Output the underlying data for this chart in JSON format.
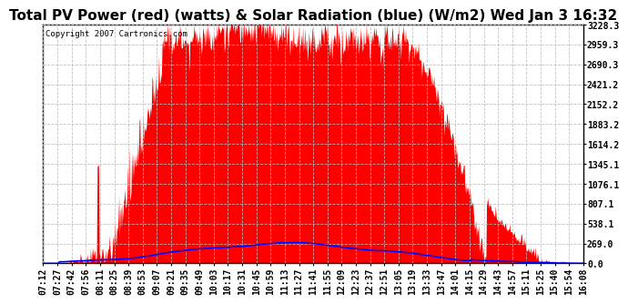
{
  "title": "Total PV Power (red) (watts) & Solar Radiation (blue) (W/m2) Wed Jan 3 16:32",
  "copyright": "Copyright 2007 Cartronics.com",
  "y_ticks": [
    0.0,
    269.0,
    538.1,
    807.1,
    1076.1,
    1345.1,
    1614.2,
    1883.2,
    2152.2,
    2421.2,
    2690.3,
    2959.3,
    3228.3
  ],
  "y_max": 3228.3,
  "x_labels": [
    "07:12",
    "07:27",
    "07:42",
    "07:56",
    "08:11",
    "08:25",
    "08:39",
    "08:53",
    "09:07",
    "09:21",
    "09:35",
    "09:49",
    "10:03",
    "10:17",
    "10:31",
    "10:45",
    "10:59",
    "11:13",
    "11:27",
    "11:41",
    "11:55",
    "12:09",
    "12:23",
    "12:37",
    "12:51",
    "13:05",
    "13:19",
    "13:33",
    "13:47",
    "14:01",
    "14:15",
    "14:29",
    "14:43",
    "14:57",
    "15:11",
    "15:25",
    "15:40",
    "15:54",
    "16:08"
  ],
  "bg_color": "#ffffff",
  "plot_bg_color": "#ffffff",
  "grid_color": "#bbbbbb",
  "pv_color": "#ff0000",
  "solar_color": "#0000ff",
  "title_fontsize": 11,
  "tick_fontsize": 7,
  "n_points": 800
}
